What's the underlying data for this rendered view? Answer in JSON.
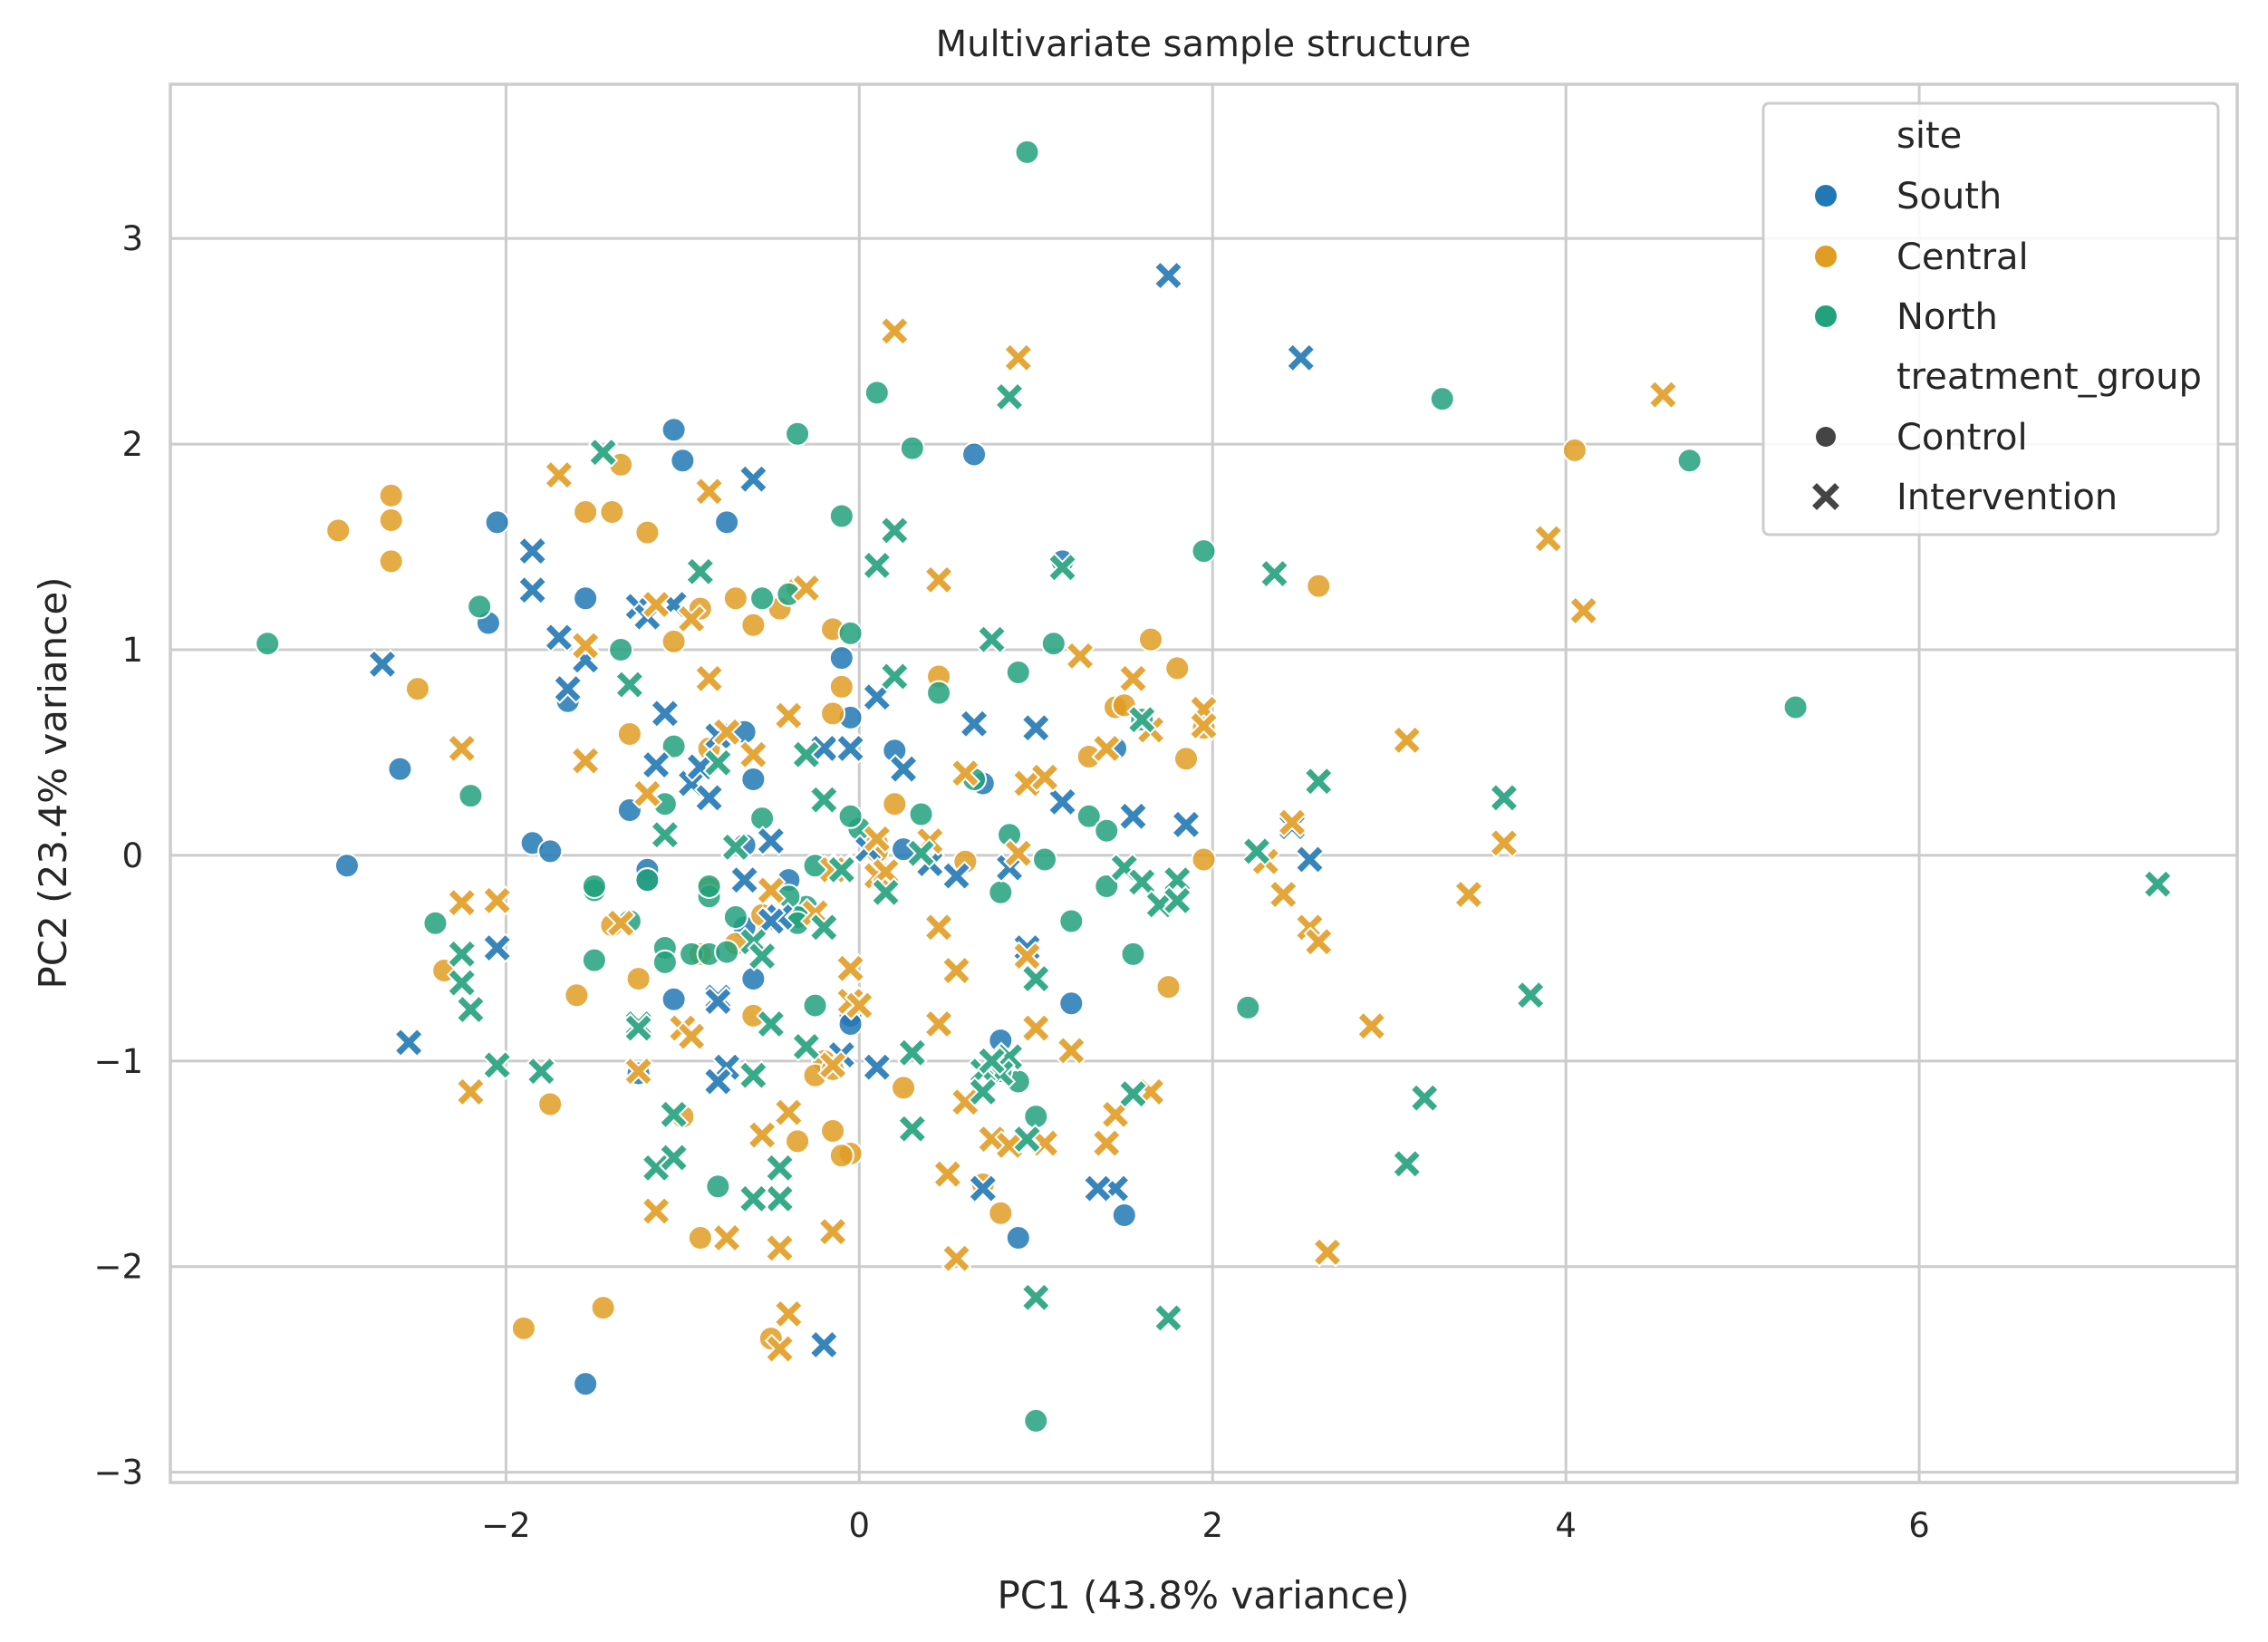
{
  "chart_data": {
    "type": "scatter",
    "title": "Multivariate sample structure",
    "xlabel": "PC1 (43.8% variance)",
    "ylabel": "PC2 (23.4% variance)",
    "xlim": [
      -3.9,
      7.8
    ],
    "ylim": [
      -3.05,
      3.75
    ],
    "xticks": [
      -2,
      0,
      2,
      4,
      6
    ],
    "yticks": [
      -3,
      -2,
      -1,
      0,
      1,
      2,
      3
    ],
    "grid": true,
    "legend": {
      "placement": "top-right",
      "hue_title": "site",
      "style_title": "treatment_group",
      "hue_entries": [
        "South",
        "Central",
        "North"
      ],
      "style_entries": [
        {
          "label": "Control",
          "marker": "circle"
        },
        {
          "label": "Intervention",
          "marker": "x"
        }
      ]
    },
    "colors": {
      "South": "#2178b4",
      "Central": "#e19c24",
      "North": "#23a17c"
    },
    "series": [
      {
        "name": "South",
        "group": "Control",
        "marker": "circle",
        "x": [
          -2.9,
          -2.05,
          -2.1,
          -2.6,
          -1.85,
          -1.75,
          -1.65,
          -1.55,
          -1.3,
          -1.2,
          -1.05,
          -1.0,
          -1.2,
          -0.75,
          -0.65,
          -0.65,
          -0.6,
          -0.4,
          -0.1,
          -0.05,
          0.2,
          0.25,
          0.65,
          0.7,
          0.8,
          1.2,
          1.45,
          1.5,
          0.9,
          -0.05,
          -1.55,
          -0.6,
          -1.25,
          -1.05,
          -0.05,
          1.15,
          -0.65
        ],
        "y": [
          -0.05,
          1.62,
          1.13,
          0.42,
          0.06,
          0.02,
          0.75,
          1.25,
          0.22,
          -0.07,
          2.07,
          1.92,
          -0.12,
          1.62,
          0.6,
          0.05,
          0.37,
          -0.12,
          0.96,
          0.67,
          0.51,
          0.03,
          1.95,
          0.35,
          -0.9,
          -0.72,
          0.52,
          -1.75,
          -1.86,
          -0.78,
          -2.57,
          -0.6,
          -1.06,
          -0.7,
          -0.82,
          1.43,
          -0.35
        ]
      },
      {
        "name": "Central",
        "group": "Control",
        "marker": "circle",
        "x": [
          -2.95,
          -2.65,
          -2.65,
          -2.65,
          -2.5,
          -1.55,
          -1.35,
          -1.4,
          -1.2,
          -1.3,
          -1.05,
          -0.9,
          -0.85,
          -0.7,
          -0.6,
          -0.45,
          -0.35,
          -0.15,
          -0.1,
          -0.15,
          0.2,
          0.1,
          0.45,
          0.6,
          1.3,
          1.45,
          1.5,
          1.65,
          1.8,
          1.85,
          1.95,
          1.95,
          2.6,
          4.05,
          0.7,
          0.8,
          1.75,
          -0.2,
          -0.25,
          -0.15,
          -0.15,
          -0.05,
          -0.1,
          -0.9,
          -1.45,
          -1.9,
          -1.75,
          -1.6,
          -1.4,
          -1.25,
          -0.85,
          -0.7,
          -0.6,
          -0.55,
          -0.35,
          -0.5,
          -1.0,
          0.1,
          0.25,
          -2.35,
          -0.9
        ],
        "y": [
          1.58,
          1.75,
          1.63,
          1.43,
          0.81,
          1.67,
          1.9,
          1.67,
          1.57,
          0.59,
          1.04,
          1.2,
          0.52,
          1.25,
          1.12,
          1.2,
          1.3,
          1.1,
          0.82,
          0.69,
          0.25,
          0.06,
          0.87,
          -0.03,
          0.48,
          0.72,
          0.73,
          1.05,
          0.91,
          0.47,
          0.62,
          -0.02,
          1.31,
          1.97,
          -1.6,
          -1.74,
          -0.64,
          -1.0,
          -1.07,
          -1.04,
          -1.34,
          -1.45,
          -1.46,
          -1.86,
          -2.2,
          -2.3,
          -1.21,
          -0.68,
          -0.34,
          -0.6,
          -0.16,
          -0.43,
          -0.78,
          -0.29,
          -1.39,
          -2.35,
          -1.27,
          0.02,
          -1.13,
          -0.56,
          -0.48
        ]
      },
      {
        "name": "North",
        "group": "Control",
        "marker": "circle",
        "x": [
          -3.35,
          -2.15,
          -2.2,
          -2.4,
          -1.5,
          -1.5,
          -1.2,
          -1.1,
          -1.05,
          -0.95,
          -0.85,
          -0.55,
          -0.4,
          -0.35,
          -0.3,
          -0.35,
          -0.25,
          -0.1,
          -0.05,
          0.0,
          0.1,
          0.3,
          0.45,
          0.65,
          0.85,
          0.9,
          0.95,
          1.05,
          1.1,
          1.2,
          1.3,
          1.4,
          1.4,
          1.55,
          1.6,
          1.95,
          2.2,
          3.3,
          4.7,
          5.3,
          0.9,
          0.8,
          0.8,
          1.0,
          1.0,
          -0.8,
          -0.25,
          -0.55,
          -0.4,
          -1.5,
          -0.75,
          -0.85,
          -0.7,
          -1.1,
          -1.1,
          -0.85,
          -1.35,
          -1.3,
          0.35,
          -0.35,
          -0.05
        ],
        "y": [
          1.03,
          1.21,
          0.29,
          -0.33,
          -0.51,
          -0.17,
          -0.12,
          0.25,
          0.53,
          -0.48,
          -0.48,
          1.25,
          1.27,
          2.05,
          -0.25,
          -0.3,
          -0.73,
          1.65,
          1.08,
          0.13,
          2.25,
          1.98,
          0.79,
          0.37,
          0.1,
          0.89,
          3.42,
          -0.02,
          1.03,
          -0.32,
          0.19,
          0.12,
          -0.15,
          -0.48,
          0.66,
          1.48,
          -0.74,
          2.22,
          1.92,
          0.72,
          -1.1,
          -0.18,
          -1.05,
          -1.27,
          -2.75,
          -1.61,
          -0.05,
          0.18,
          -0.2,
          -0.15,
          -0.47,
          -0.2,
          -0.3,
          -0.45,
          -0.52,
          -0.15,
          1.0,
          -0.32,
          0.2,
          -0.33,
          0.19
        ]
      },
      {
        "name": "South",
        "group": "Intervention",
        "marker": "x",
        "x": [
          -2.7,
          -2.55,
          -2.05,
          -1.85,
          -1.85,
          -1.7,
          -1.65,
          -1.55,
          -1.25,
          -1.2,
          -1.15,
          -1.1,
          -0.95,
          -0.85,
          -0.8,
          -0.75,
          -0.8,
          -0.6,
          -0.5,
          -0.45,
          -0.2,
          -0.1,
          -0.05,
          0.05,
          0.1,
          0.25,
          0.4,
          0.55,
          0.65,
          0.85,
          1.0,
          1.15,
          1.45,
          1.55,
          1.75,
          1.85,
          2.45,
          2.5,
          2.55,
          0.95,
          1.35,
          0.7,
          0.1,
          -0.1,
          -0.8,
          -0.9,
          -0.2,
          -0.65,
          -0.5,
          -1.05,
          -0.8
        ],
        "y": [
          0.93,
          -0.91,
          -0.45,
          1.48,
          1.29,
          1.06,
          0.81,
          0.95,
          1.21,
          1.16,
          0.44,
          0.69,
          0.35,
          0.28,
          0.58,
          -1.03,
          -0.69,
          1.83,
          0.07,
          -0.3,
          0.52,
          -0.97,
          0.52,
          0.03,
          0.77,
          0.42,
          -0.04,
          -0.1,
          0.64,
          -0.06,
          0.62,
          0.26,
          -1.62,
          0.19,
          2.82,
          0.15,
          0.14,
          2.42,
          -0.02,
          -0.45,
          -1.62,
          -1.62,
          -1.03,
          -0.06,
          -0.71,
          0.43,
          -2.38,
          -0.12,
          -0.32,
          1.22,
          -1.1
        ]
      },
      {
        "name": "Central",
        "group": "Intervention",
        "marker": "x",
        "x": [
          -2.25,
          -2.25,
          -2.2,
          -2.05,
          -1.7,
          -1.55,
          -1.55,
          -1.35,
          -1.2,
          -1.15,
          -0.95,
          -0.85,
          -0.85,
          -0.75,
          -0.6,
          -0.5,
          -0.4,
          -0.3,
          -0.15,
          0.1,
          0.2,
          0.4,
          0.45,
          0.6,
          0.9,
          0.95,
          1.05,
          1.25,
          1.4,
          1.55,
          1.65,
          1.95,
          1.95,
          2.3,
          2.4,
          2.45,
          2.55,
          2.6,
          3.1,
          3.45,
          3.65,
          3.9,
          4.1,
          4.55,
          1.2,
          1.4,
          1.45,
          1.65,
          2.65,
          2.9,
          0.55,
          0.5,
          0.45,
          0.45,
          0.75,
          0.95,
          1.05,
          -0.05,
          -0.15,
          -0.45,
          -0.4,
          -0.45,
          -0.25,
          -0.4,
          -0.75,
          -0.15,
          0.15,
          0.0,
          -0.05,
          -1.15,
          -1.0,
          -0.95,
          -0.55,
          -1.25,
          0.55,
          0.6,
          0.85,
          0.9,
          1.0,
          0.1
        ],
        "y": [
          0.52,
          -0.23,
          -1.15,
          -0.22,
          1.85,
          1.02,
          0.46,
          -0.33,
          0.3,
          1.22,
          1.15,
          1.77,
          0.86,
          0.6,
          0.49,
          -0.17,
          0.68,
          1.3,
          -0.07,
          -0.1,
          2.55,
          0.07,
          1.34,
          0.4,
          2.42,
          0.35,
          0.38,
          0.97,
          0.52,
          0.86,
          0.61,
          0.71,
          0.63,
          -0.03,
          -0.19,
          0.16,
          -0.35,
          -0.42,
          0.56,
          -0.19,
          0.06,
          1.54,
          1.19,
          2.24,
          -0.95,
          -1.4,
          -1.26,
          -1.15,
          -1.93,
          -0.83,
          -1.96,
          -1.55,
          -0.82,
          -0.35,
          -1.38,
          -0.49,
          -1.4,
          -0.71,
          -1.83,
          -1.91,
          -2.23,
          -2.4,
          -0.28,
          -1.25,
          -1.86,
          -1.02,
          -0.08,
          -0.73,
          -0.55,
          -1.73,
          -0.84,
          -0.88,
          -1.36,
          -1.05,
          -0.56,
          -1.2,
          -1.41,
          0.01,
          -0.84,
          0.08
        ]
      },
      {
        "name": "North",
        "group": "Intervention",
        "marker": "x",
        "x": [
          -2.25,
          -2.25,
          -2.2,
          -2.05,
          -1.8,
          -1.45,
          -1.3,
          -1.25,
          -1.15,
          -1.1,
          -0.9,
          -0.8,
          -0.7,
          -0.6,
          -0.45,
          -0.3,
          -0.2,
          0.1,
          0.2,
          0.2,
          0.35,
          0.85,
          0.75,
          1.15,
          1.5,
          1.55,
          1.6,
          1.75,
          2.25,
          2.6,
          3.65,
          3.8,
          3.2,
          3.1,
          1.6,
          1.7,
          1.0,
          1.0,
          0.95,
          0.85,
          0.8,
          0.3,
          0.3,
          0.15,
          -0.1,
          -0.2,
          -0.3,
          -0.45,
          -0.45,
          -0.55,
          -0.6,
          -0.6,
          -1.05,
          -1.05,
          -1.25,
          -0.5,
          2.35,
          7.35,
          1.8,
          1.8,
          0.7,
          0.75,
          0.7
        ],
        "y": [
          -0.48,
          -0.62,
          -0.75,
          -1.02,
          -1.05,
          1.96,
          0.83,
          -0.82,
          -1.52,
          0.1,
          1.38,
          0.45,
          0.04,
          -0.42,
          -1.52,
          0.49,
          0.27,
          1.41,
          1.58,
          0.87,
          0.01,
          2.23,
          1.05,
          1.4,
          -0.06,
          -1.16,
          -0.13,
          -2.25,
          0.02,
          0.36,
          0.28,
          -0.68,
          -1.18,
          -1.5,
          0.66,
          -0.24,
          -0.6,
          -2.15,
          -1.38,
          -0.98,
          -1.06,
          -0.96,
          -1.33,
          -0.18,
          -0.07,
          -0.35,
          -0.93,
          -1.67,
          -1.52,
          -0.49,
          -1.07,
          -1.67,
          -1.26,
          -1.47,
          -0.84,
          -0.82,
          1.37,
          -0.14,
          -0.12,
          -0.22,
          -1.05,
          -1.0,
          -1.15
        ]
      }
    ]
  }
}
